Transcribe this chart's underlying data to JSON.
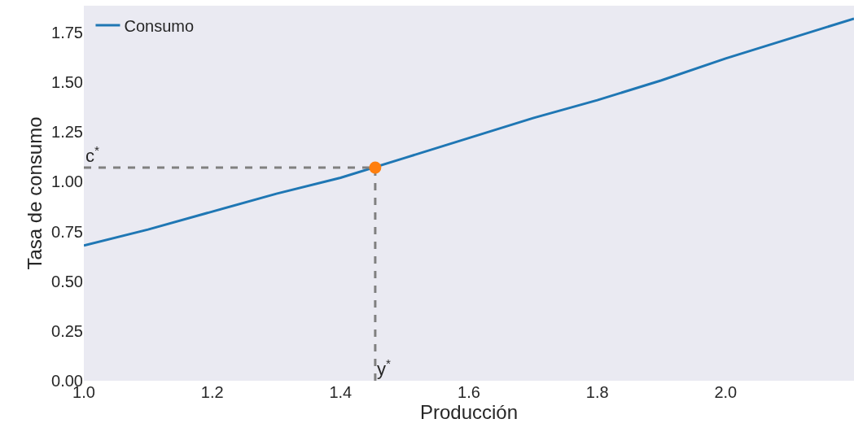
{
  "chart_data": {
    "type": "line",
    "xlabel": "Producción",
    "ylabel": "Tasa de consumo",
    "xlim": [
      1.0,
      2.2
    ],
    "xticks": [
      {
        "value": 1,
        "label": "1.0"
      },
      1.2,
      1.4,
      1.6,
      1.8,
      {
        "value": 2,
        "label": "2.0"
      }
    ],
    "ylim": [
      0,
      1.885
    ],
    "yticks": [
      {
        "value": 0,
        "label": "0.00"
      },
      0.25,
      {
        "value": 0.5,
        "label": "0.50"
      },
      0.75,
      {
        "value": 1,
        "label": "1.00"
      },
      1.25,
      {
        "value": 1.5,
        "label": "1.50"
      },
      1.75
    ],
    "grid": false,
    "legend": "top left",
    "series": [
      {
        "name": "Consumo",
        "color": "#1f77b4",
        "x": [
          1.0,
          1.1,
          1.2,
          1.3,
          1.4,
          1.5,
          1.6,
          1.7,
          1.8,
          1.9,
          2.0,
          2.1,
          2.2
        ],
        "values": [
          0.68,
          0.76,
          0.85,
          0.94,
          1.02,
          1.12,
          1.22,
          1.32,
          1.41,
          1.51,
          1.62,
          1.72,
          1.82
        ]
      },
      {
        "color": "#808080",
        "line_style": "dashed",
        "x": [
          1.0,
          1.454
        ],
        "values": [
          1.071,
          1.071
        ]
      },
      {
        "color": "#808080",
        "line_style": "dashed",
        "x": [
          1.454,
          1.454
        ],
        "values": [
          0,
          1.071
        ]
      },
      {
        "type": "scatter",
        "color": "#ff7f0e",
        "marker": "circle",
        "x": [
          1.454
        ],
        "values": [
          1.071
        ]
      }
    ],
    "annotations": [
      {
        "text": "c$^{*}$",
        "x": 1.0,
        "y": 1.071
      },
      {
        "text": "y$^{*}$",
        "x": 1.454,
        "y": 0
      }
    ]
  }
}
